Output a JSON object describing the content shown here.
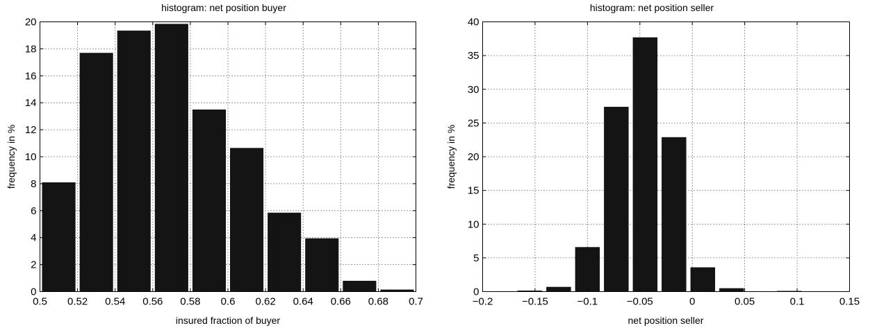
{
  "chart_data": [
    {
      "type": "bar",
      "title": "histogram: net position buyer",
      "xlabel": "insured fraction of buyer",
      "ylabel": "frequency in %",
      "xlim": [
        0.5,
        0.7
      ],
      "ylim": [
        0,
        20
      ],
      "xticks": [
        0.5,
        0.52,
        0.54,
        0.56,
        0.58,
        0.6,
        0.62,
        0.64,
        0.66,
        0.68,
        0.7
      ],
      "xtick_labels": [
        "0.5",
        "0.52",
        "0.54",
        "0.56",
        "0.58",
        "0.6",
        "0.62",
        "0.64",
        "0.66",
        "0.68",
        "0.7"
      ],
      "yticks": [
        0,
        2,
        4,
        6,
        8,
        10,
        12,
        14,
        16,
        18,
        20
      ],
      "ytick_labels": [
        "0",
        "2",
        "4",
        "6",
        "8",
        "10",
        "12",
        "14",
        "16",
        "18",
        "20"
      ],
      "grid": true,
      "bar_color": "#141414",
      "x": [
        0.51,
        0.53,
        0.55,
        0.57,
        0.59,
        0.61,
        0.63,
        0.65,
        0.67,
        0.69
      ],
      "bin_width": 0.02,
      "values": [
        8.1,
        17.7,
        19.35,
        19.85,
        13.5,
        10.65,
        5.85,
        3.95,
        0.8,
        0.15
      ]
    },
    {
      "type": "bar",
      "title": "histogram: net position seller",
      "xlabel": "net position seller",
      "ylabel": "frequency in %",
      "xlim": [
        -0.2,
        0.15
      ],
      "ylim": [
        0,
        40
      ],
      "xticks": [
        -0.2,
        -0.15,
        -0.1,
        -0.05,
        0,
        0.05,
        0.1,
        0.15
      ],
      "xtick_labels": [
        "−0.2",
        "−0.15",
        "−0.1",
        "−0.05",
        "0",
        "0.05",
        "0.1",
        "0.15"
      ],
      "yticks": [
        0,
        5,
        10,
        15,
        20,
        25,
        30,
        35,
        40
      ],
      "ytick_labels": [
        "0",
        "5",
        "10",
        "15",
        "20",
        "25",
        "30",
        "35",
        "40"
      ],
      "grid": true,
      "bar_color": "#141414",
      "x": [
        -0.1825,
        -0.155,
        -0.1275,
        -0.1,
        -0.0725,
        -0.045,
        -0.0175,
        0.01,
        0.0375,
        0.065,
        0.0925,
        0.12
      ],
      "bin_width": 0.0275,
      "values": [
        0.02,
        0.15,
        0.7,
        6.6,
        27.4,
        37.7,
        22.9,
        3.6,
        0.5,
        0.05,
        0.1,
        0
      ]
    }
  ]
}
